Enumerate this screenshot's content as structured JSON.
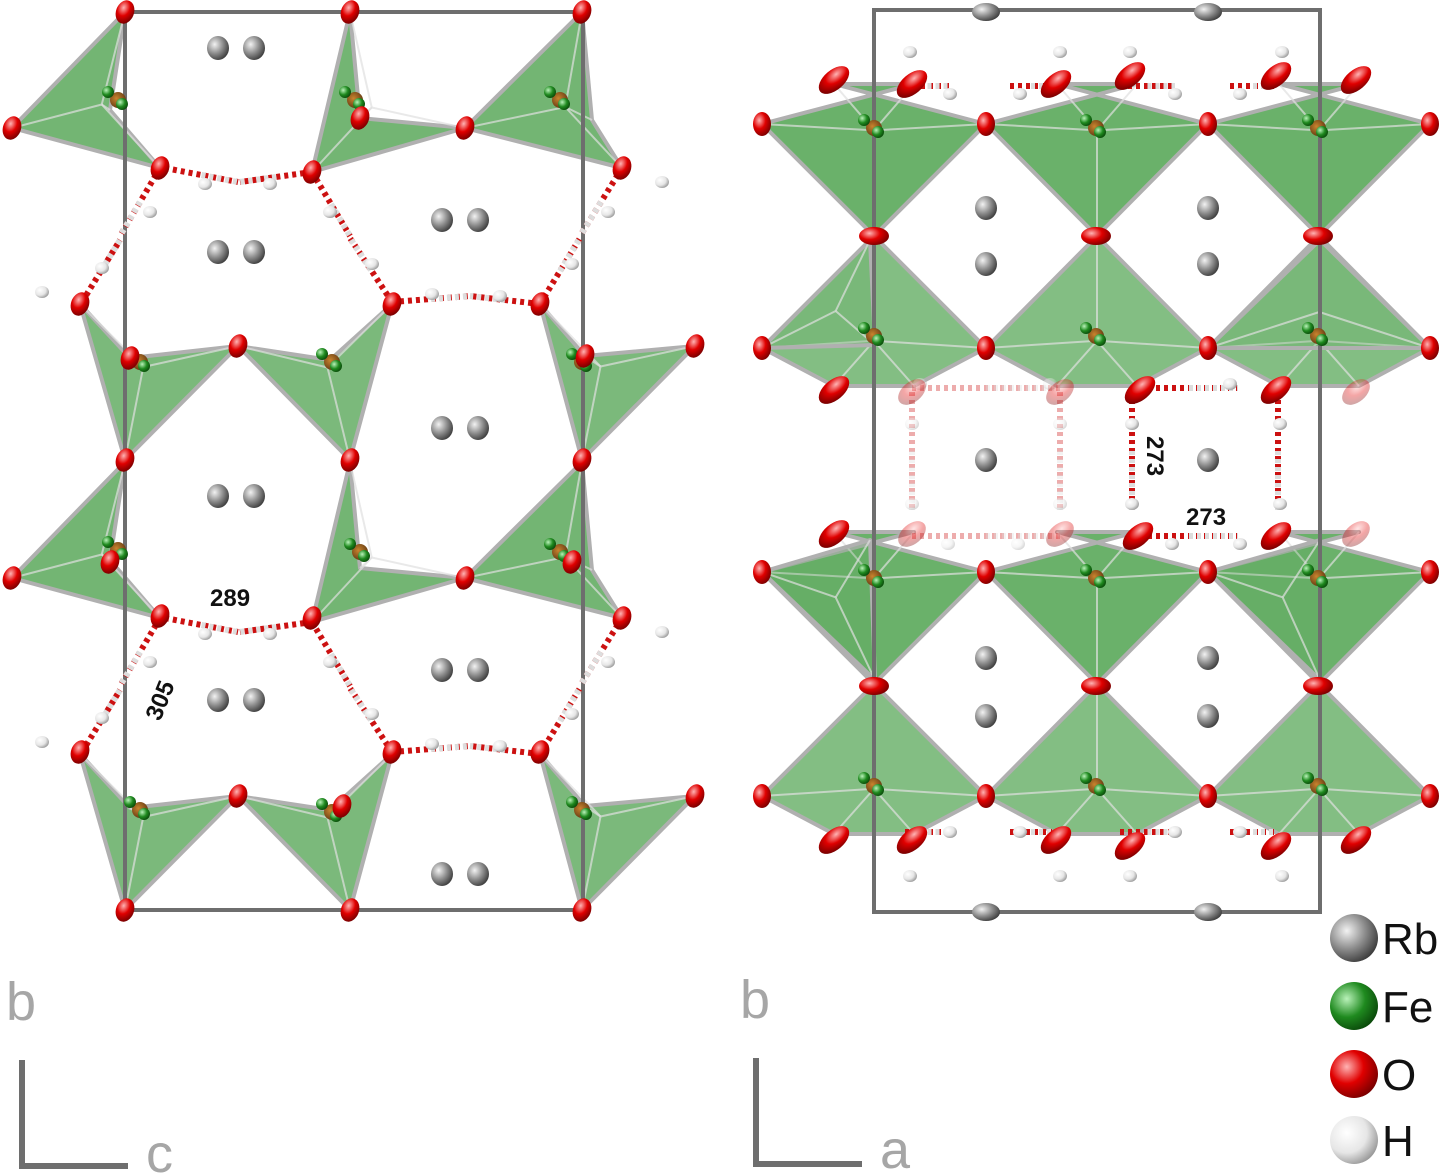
{
  "panel_left": {
    "axis_vertical": "b",
    "axis_horizontal": "c",
    "distances": [
      "289",
      "305"
    ]
  },
  "panel_right": {
    "axis_vertical": "b",
    "axis_horizontal": "a",
    "distances": [
      "273",
      "273"
    ]
  },
  "legend": [
    {
      "element": "Rb",
      "icon": "gray-sphere-icon",
      "color": "#8c8c8c"
    },
    {
      "element": "Fe",
      "icon": "green-sphere-icon",
      "color": "#1f8a1f"
    },
    {
      "element": "O",
      "icon": "red-sphere-icon",
      "color": "#dd0000"
    },
    {
      "element": "H",
      "icon": "white-sphere-icon",
      "color": "#e6e6e6"
    }
  ],
  "colors": {
    "polyhedron": "#5aa85a",
    "polyhedron_edge": "#b0b0b0",
    "cell": "#6e6e6e",
    "hbond_red": "#cc1111",
    "hbond_white": "#dddddd"
  }
}
